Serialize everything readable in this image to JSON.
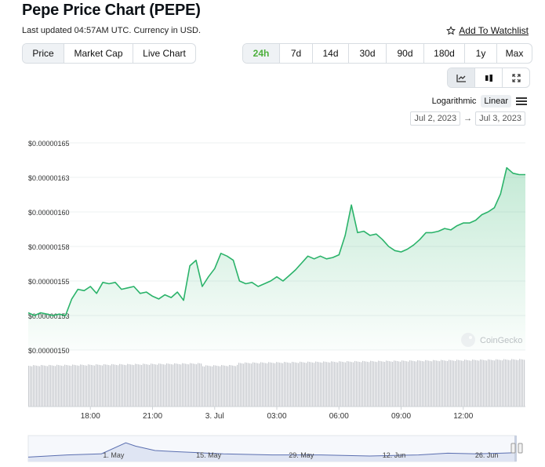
{
  "header": {
    "title": "Pepe Price Chart (PEPE)",
    "updated": "Last updated 04:57AM UTC. Currency in USD.",
    "watchlist": "Add To Watchlist"
  },
  "tabs": [
    "Price",
    "Market Cap",
    "Live Chart"
  ],
  "ranges": [
    "24h",
    "7d",
    "14d",
    "30d",
    "90d",
    "180d",
    "1y",
    "Max"
  ],
  "scale": {
    "log": "Logarithmic",
    "linear": "Linear"
  },
  "dates": {
    "from": "Jul 2, 2023",
    "to": "Jul 3, 2023"
  },
  "watermark": "CoinGecko",
  "colors": {
    "line": "#2bb36a",
    "accent": "#4caf3b",
    "volume": "#c8cbcf",
    "nav": "#5b6fb0"
  },
  "chart_data": {
    "type": "line",
    "series_name": "Price (USD)",
    "y_ticks": [
      1.5e-06,
      1.525e-06,
      1.55e-06,
      1.575e-06,
      1.6e-06,
      1.625e-06,
      1.65e-06
    ],
    "y_tick_labels": [
      "$0.00000150",
      "$0.00000153",
      "$0.00000155",
      "$0.00000158",
      "$0.00000160",
      "$0.00000163",
      "$0.00000165"
    ],
    "ylim": [
      1.5e-06,
      1.65e-06
    ],
    "x_range_hours": [
      0,
      24
    ],
    "x_ticks": [
      {
        "t": 3,
        "label": "18:00"
      },
      {
        "t": 6,
        "label": "21:00"
      },
      {
        "t": 9,
        "label": "3. Jul"
      },
      {
        "t": 12,
        "label": "03:00"
      },
      {
        "t": 15,
        "label": "06:00"
      },
      {
        "t": 18,
        "label": "09:00"
      },
      {
        "t": 21,
        "label": "12:00"
      }
    ],
    "price_t": [
      0,
      0.3,
      0.6,
      0.9,
      1.2,
      1.5,
      1.8,
      2.1,
      2.4,
      2.7,
      3.0,
      3.3,
      3.6,
      3.9,
      4.2,
      4.5,
      4.8,
      5.1,
      5.4,
      5.7,
      6.0,
      6.3,
      6.6,
      6.9,
      7.2,
      7.5,
      7.8,
      8.1,
      8.4,
      8.7,
      9.0,
      9.3,
      9.6,
      9.9,
      10.2,
      10.5,
      10.8,
      11.1,
      11.4,
      11.7,
      12.0,
      12.3,
      12.6,
      12.9,
      13.2,
      13.5,
      13.8,
      14.1,
      14.4,
      14.7,
      15.0,
      15.3,
      15.6,
      15.9,
      16.2,
      16.5,
      16.8,
      17.1,
      17.4,
      17.7,
      18.0,
      18.3,
      18.6,
      18.9,
      19.2,
      19.5,
      19.8,
      20.1,
      20.4,
      20.7,
      21.0,
      21.3,
      21.6,
      21.9,
      22.2,
      22.5,
      22.8,
      23.1,
      23.4,
      23.7,
      24.0
    ],
    "price_v": [
      1.527,
      1.525,
      1.527,
      1.526,
      1.525,
      1.526,
      1.525,
      1.537,
      1.544,
      1.543,
      1.546,
      1.541,
      1.549,
      1.548,
      1.549,
      1.544,
      1.545,
      1.546,
      1.541,
      1.542,
      1.539,
      1.537,
      1.54,
      1.538,
      1.542,
      1.536,
      1.561,
      1.565,
      1.546,
      1.553,
      1.559,
      1.57,
      1.568,
      1.565,
      1.55,
      1.548,
      1.549,
      1.546,
      1.548,
      1.55,
      1.553,
      1.55,
      1.554,
      1.558,
      1.563,
      1.568,
      1.566,
      1.568,
      1.566,
      1.567,
      1.569,
      1.583,
      1.605,
      1.585,
      1.586,
      1.583,
      1.584,
      1.58,
      1.575,
      1.572,
      1.571,
      1.573,
      1.576,
      1.58,
      1.585,
      1.585,
      1.586,
      1.588,
      1.587,
      1.59,
      1.592,
      1.592,
      1.594,
      1.598,
      1.6,
      1.603,
      1.613,
      1.632,
      1.628,
      1.627,
      1.627
    ],
    "volume_relative": "uniform bars, slightly taller toward the end",
    "navigator_ticks": [
      "1. May",
      "15. May",
      "29. May",
      "12. Jun",
      "26. Jun"
    ]
  }
}
